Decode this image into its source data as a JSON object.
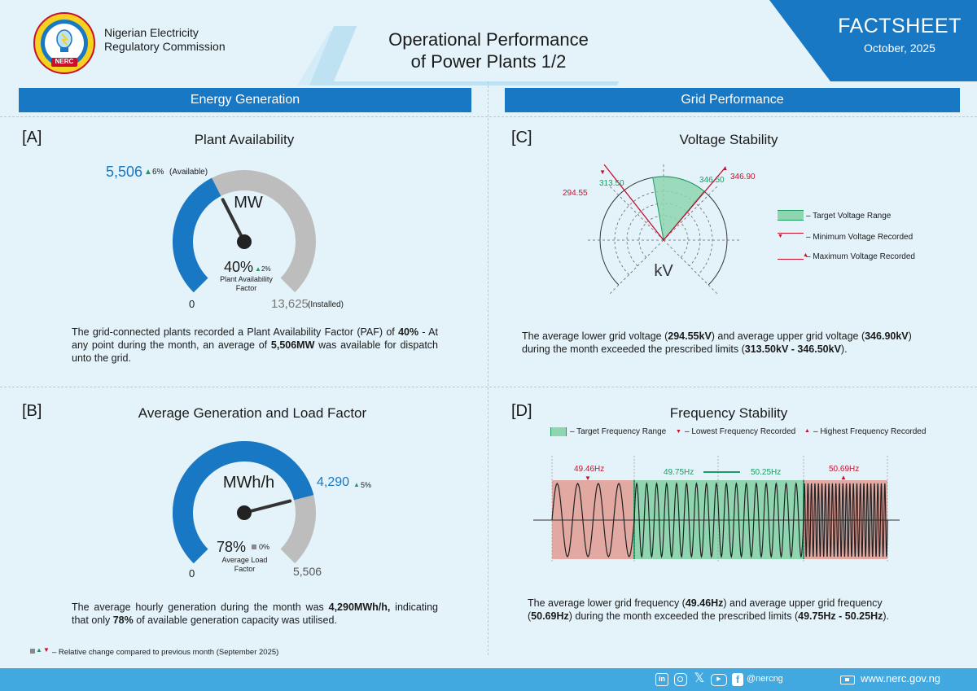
{
  "header": {
    "org_line1": "Nigerian Electricity",
    "org_line2": "Regulatory Commission",
    "logo_text": "NERC",
    "logo_ring_text": "NIGERIAN ELECTRICITY REGULATORY COMMISSION",
    "title_line1": "Operational Performance",
    "title_line2": "of Power Plants 1/2",
    "badge": "FACTSHEET",
    "date": "October, 2025"
  },
  "colors": {
    "accent": "#1978c4",
    "green": "#1a9c63",
    "red": "#c8102e",
    "gray": "#bdbdbd"
  },
  "energy": {
    "heading": "Energy Generation",
    "plant": {
      "letter": "[A]",
      "title": "Plant Availability",
      "available_value": "5,506",
      "available_change": "6%",
      "available_label": "(Available)",
      "unit": "MW",
      "paf_value": "40%",
      "paf_change": "2%",
      "paf_label1": "Plant Availability",
      "paf_label2": "Factor",
      "min": "0",
      "installed_value": "13,625",
      "installed_label": "(Installed)",
      "fill_fraction": 0.4,
      "para_1": "The grid-connected plants recorded a Plant Availability Factor (PAF) of ",
      "para_b1": "40%",
      "para_2": " - At any point during the month, an average of ",
      "para_b2": "5,506MW",
      "para_3": " was available for dispatch unto the grid."
    },
    "generation": {
      "letter": "[B]",
      "title": "Average Generation and Load Factor",
      "unit": "MWh/h",
      "gen_value": "4,290",
      "gen_change": "5%",
      "lf_value": "78%",
      "lf_change": "0%",
      "lf_label1": "Average Load",
      "lf_label2": "Factor",
      "min": "0",
      "max": "5,506",
      "fill_fraction": 0.78,
      "para_1": "The average hourly generation during the month was ",
      "para_b1": "4,290MWh/h,",
      "para_2": " indicating that only ",
      "para_b2": "78%",
      "para_3": " of available generation capacity was utilised."
    },
    "note": "– Relative change compared to previous month (September 2025)"
  },
  "grid": {
    "heading": "Grid Performance",
    "voltage": {
      "letter": "[C]",
      "title": "Voltage Stability",
      "unit": "kV",
      "min_recorded": "294.55",
      "target_low": "313.50",
      "target_high": "346.50",
      "max_recorded": "346.90",
      "legend_target": "– Target Voltage Range",
      "legend_min": "– Minimum Voltage Recorded",
      "legend_max": "– Maximum Voltage Recorded",
      "para_1": "The average lower grid voltage (",
      "para_b1": "294.55kV",
      "para_2": ") and average upper grid voltage (",
      "para_b2": "346.90kV",
      "para_3": ") during the month exceeded the prescribed limits (",
      "para_b3": "313.50kV - 346.50kV",
      "para_4": ")."
    },
    "frequency": {
      "letter": "[D]",
      "title": "Frequency Stability",
      "legend_target": "– Target Frequency Range",
      "legend_low": "– Lowest Frequency Recorded",
      "legend_high": "– Highest Frequency Recorded",
      "low_recorded": "49.46Hz",
      "target_low": "49.75Hz",
      "target_high": "50.25Hz",
      "high_recorded": "50.69Hz",
      "para_1": "The average lower grid frequency (",
      "para_b1": "49.46Hz",
      "para_2": ") and average upper grid frequency (",
      "para_b2": "50.69Hz",
      "para_3": ") during the month exceeded the prescribed limits (",
      "para_b3": "49.75Hz - 50.25Hz",
      "para_4": ")."
    }
  },
  "footer": {
    "handle": "@nercng",
    "website": "www.nerc.gov.ng",
    "icons": [
      "linkedin-icon",
      "instagram-icon",
      "x-icon",
      "youtube-icon",
      "facebook-icon"
    ]
  }
}
